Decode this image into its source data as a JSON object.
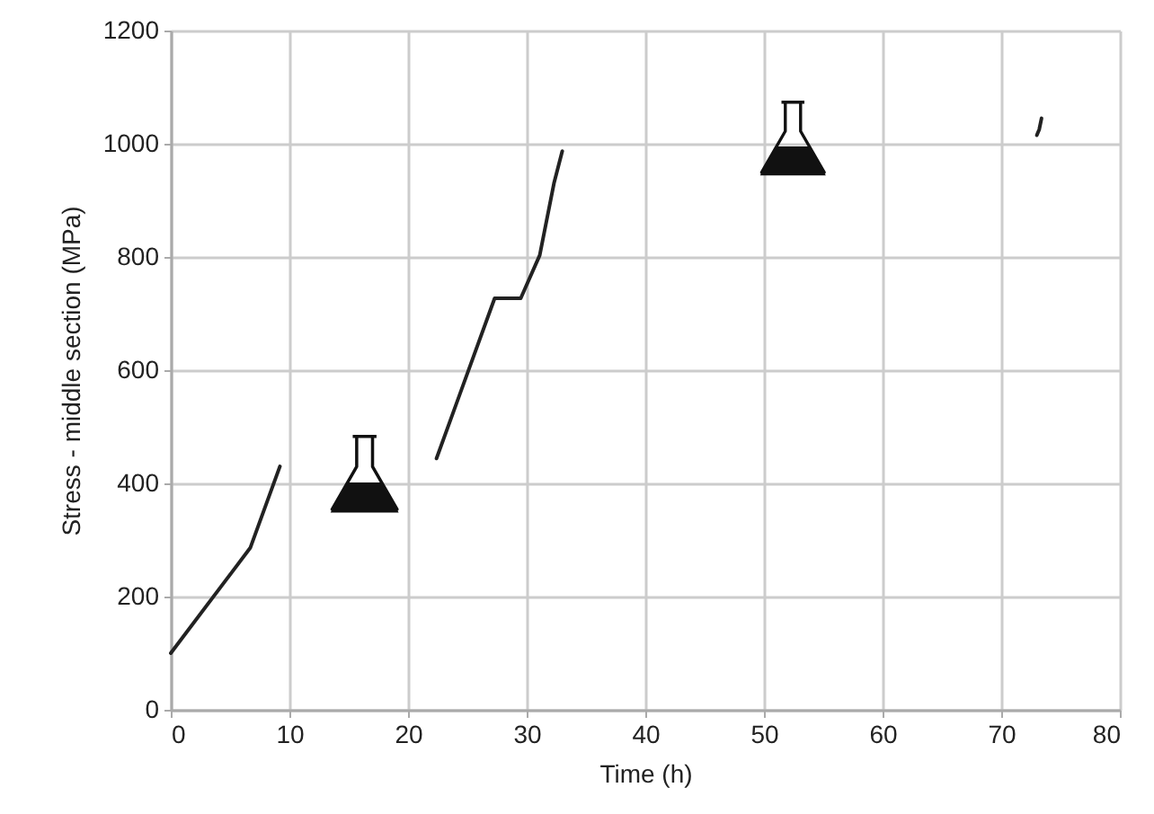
{
  "chart_data": {
    "type": "line",
    "xlabel": "Time (h)",
    "ylabel": "Stress - middle section (MPa)",
    "xlim": [
      0,
      80
    ],
    "xticks": [
      0,
      10,
      20,
      30,
      40,
      50,
      60,
      70,
      80
    ],
    "ylim": [
      0,
      1200
    ],
    "yticks": [
      0,
      200,
      400,
      600,
      800,
      1000,
      1200
    ],
    "grid": true,
    "line_style": "solid",
    "series": [
      {
        "color": "#222222",
        "x": [
          0,
          6.7,
          9.2
        ],
        "values": [
          100,
          286,
          430
        ]
      },
      {
        "color": "#222222",
        "x": [
          22.4,
          27.3,
          29.5,
          31.1,
          32.3,
          33.0
        ],
        "values": [
          444,
          727,
          727,
          803,
          930,
          987
        ]
      },
      {
        "color": "#222222",
        "x": [
          73.0,
          73.2,
          73.4
        ],
        "values": [
          1015,
          1025,
          1045
        ]
      }
    ]
  }
}
